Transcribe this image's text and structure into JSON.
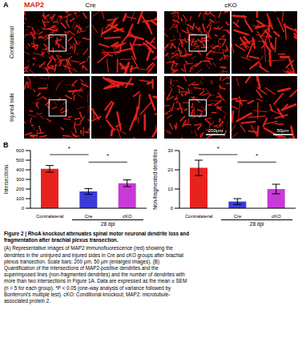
{
  "panel_a": {
    "label": "A",
    "stain": "MAP2",
    "columns": [
      "Cre",
      "cKO"
    ],
    "rows": [
      "Contralateral",
      "Injured side"
    ],
    "scale_bars": [
      "200μm",
      "50μm"
    ]
  },
  "panel_b": {
    "label": "B"
  },
  "chart_data": [
    {
      "type": "bar",
      "categories": [
        "Contralateral",
        "Cre",
        "cKO"
      ],
      "values": [
        410,
        175,
        260
      ],
      "errors": [
        35,
        30,
        35
      ],
      "colors": [
        "#e8231f",
        "#3b3bd9",
        "#c83ad8"
      ],
      "y_label": "Intersections",
      "ylim": [
        0,
        600
      ],
      "yticks": [
        0,
        100,
        200,
        300,
        400,
        500,
        600
      ],
      "group_label": {
        "text": "28 dpi",
        "categories": [
          "Cre",
          "cKO"
        ]
      },
      "significance": [
        {
          "from": "Contralateral",
          "to": "Cre",
          "label": "*"
        },
        {
          "from": "Cre",
          "to": "cKO",
          "label": "*"
        }
      ]
    },
    {
      "type": "bar",
      "categories": [
        "Contralateral",
        "Cre",
        "cKO"
      ],
      "values": [
        21,
        3.5,
        10
      ],
      "errors": [
        4,
        1.5,
        2.5
      ],
      "colors": [
        "#e8231f",
        "#3b3bd9",
        "#c83ad8"
      ],
      "y_label": "Non-fragmented dendrites",
      "ylim": [
        0,
        30
      ],
      "yticks": [
        0,
        10,
        20,
        30
      ],
      "group_label": {
        "text": "28 dpi",
        "categories": [
          "Cre",
          "cKO"
        ]
      },
      "significance": [
        {
          "from": "Contralateral",
          "to": "Cre",
          "label": "*"
        },
        {
          "from": "Cre",
          "to": "cKO",
          "label": "*"
        }
      ]
    }
  ],
  "caption": {
    "title": "Figure 2 | RhoA knockout attenuates spinal motor neuronal dendrite loss and fragmentation after brachial plexus transection.",
    "text": "(A) Representative images of MAP2 immunofluorescence (red) showing the dendrites in the uninjured and injured sides in Cre and cKO groups after brachial plexus transection. Scale bars: 200 μm, 50 μm (enlarged images). (B) Quantification of the intersections of MAP2-positive dendrites and the superimposed lines (non-fragmented dendrites) and the number of dendrites with more than two intersections in Figure 1A. Data are expressed as the mean ± SEM (n = 5 for each group). *P < 0.05 (one-way analysis of variance followed by Bonferroni's multiple test). cKO: Conditional knockout; MAP2: microtubule-associated protein 2."
  }
}
